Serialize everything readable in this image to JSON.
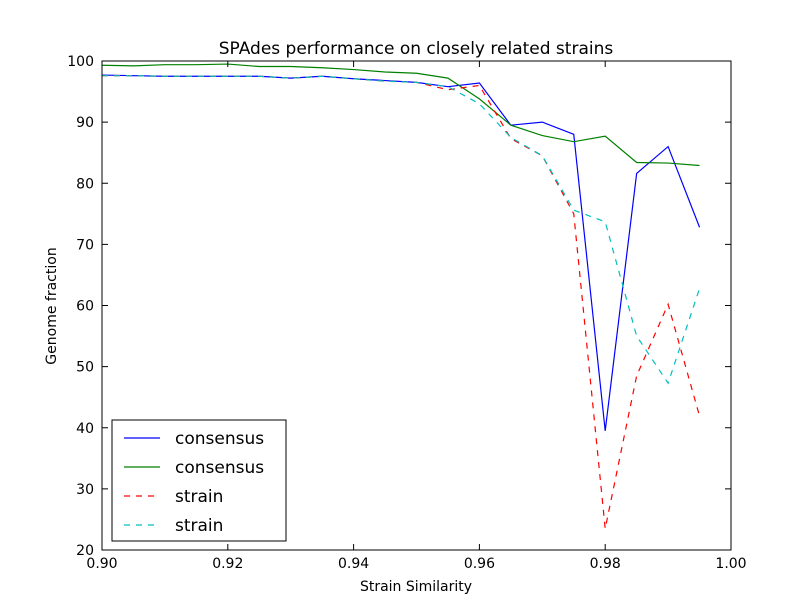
{
  "chart_data": {
    "type": "line",
    "title": "SPAdes performance on closely related strains",
    "xlabel": "Strain Similarity",
    "ylabel": "Genome fraction",
    "xlim": [
      0.9,
      1.0
    ],
    "ylim": [
      20,
      100
    ],
    "xticks": [
      "0.90",
      "0.92",
      "0.94",
      "0.96",
      "0.98",
      "1.00"
    ],
    "yticks": [
      "20",
      "30",
      "40",
      "50",
      "60",
      "70",
      "80",
      "90",
      "100"
    ],
    "legend_position": "lower-left",
    "grid": false,
    "x": [
      0.9,
      0.905,
      0.91,
      0.915,
      0.92,
      0.925,
      0.93,
      0.935,
      0.94,
      0.945,
      0.95,
      0.955,
      0.96,
      0.965,
      0.97,
      0.975,
      0.98,
      0.985,
      0.99,
      0.995
    ],
    "series": [
      {
        "name": "consensus",
        "color": "#0000ff",
        "dash": "solid",
        "values": [
          97.7,
          97.6,
          97.5,
          97.5,
          97.5,
          97.5,
          97.2,
          97.5,
          97.1,
          96.8,
          96.5,
          95.8,
          96.4,
          89.5,
          90.0,
          88.0,
          39.5,
          81.6,
          86.0,
          72.8
        ]
      },
      {
        "name": "consensus",
        "color": "#008000",
        "dash": "solid",
        "values": [
          99.3,
          99.2,
          99.4,
          99.4,
          99.5,
          99.1,
          99.1,
          98.9,
          98.6,
          98.2,
          98.0,
          97.2,
          93.8,
          89.5,
          87.8,
          86.8,
          87.7,
          83.4,
          83.3,
          82.9
        ]
      },
      {
        "name": "strain",
        "color": "#ff0000",
        "dash": "dashed",
        "values": [
          97.6,
          97.6,
          97.5,
          97.5,
          97.5,
          97.5,
          97.2,
          97.5,
          97.1,
          96.7,
          96.5,
          95.3,
          96.0,
          87.3,
          84.5,
          75.0,
          23.5,
          48.5,
          60.2,
          41.9
        ]
      },
      {
        "name": "strain",
        "color": "#00bfbf",
        "dash": "dashed",
        "values": [
          97.6,
          97.6,
          97.5,
          97.5,
          97.5,
          97.5,
          97.2,
          97.5,
          97.1,
          96.7,
          96.5,
          95.8,
          93.0,
          87.5,
          84.5,
          75.6,
          73.7,
          55.0,
          47.3,
          62.8
        ]
      }
    ]
  }
}
